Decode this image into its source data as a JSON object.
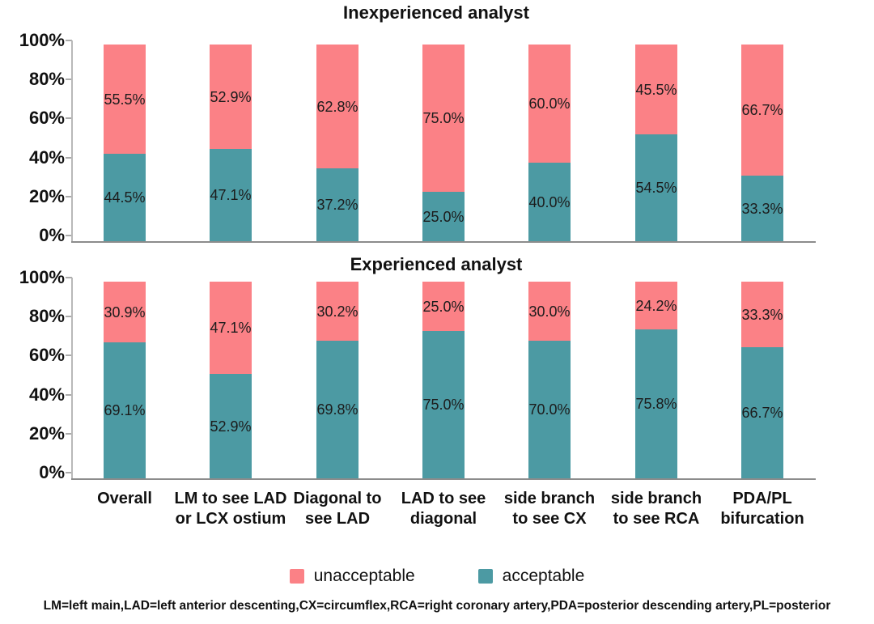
{
  "figure": {
    "legend": [
      {
        "label": "unacceptable",
        "color": "#FB8186"
      },
      {
        "label": "acceptable",
        "color": "#4C9AA3"
      }
    ],
    "footnote": "LM=left main,LAD=left anterior descenting,CX=circumflex,RCA=right coronary artery,PDA=posterior descending artery,PL=posterior"
  },
  "colors": {
    "unacceptable": "#FB8186",
    "acceptable": "#4C9AA3",
    "axis_line": "#b9b9b9",
    "baseline": "#8c8c8c",
    "tick_mark": "#ababab"
  },
  "chart_data": [
    {
      "type": "bar",
      "stacked": true,
      "title": "Inexperienced analyst",
      "categories": [
        [
          "Overall"
        ],
        [
          "LM to see LAD",
          "or LCX ostium"
        ],
        [
          "Diagonal to",
          "see LAD"
        ],
        [
          "LAD to see",
          "diagonal"
        ],
        [
          "side branch",
          "to see CX"
        ],
        [
          "side branch",
          "to see RCA"
        ],
        [
          "PDA/PL",
          "bifurcation"
        ]
      ],
      "yticks": [
        "0%",
        "20%",
        "40%",
        "60%",
        "80%",
        "100%"
      ],
      "ylim": [
        0,
        100
      ],
      "grid": false,
      "show_x_labels": false,
      "series": [
        {
          "name": "acceptable",
          "color": "#4C9AA3",
          "values": [
            44.5,
            47.1,
            37.2,
            25.0,
            40.0,
            54.5,
            33.3
          ],
          "labels": [
            "44.5%",
            "47.1%",
            "37.2%",
            "25.0%",
            "40.0%",
            "54.5%",
            "33.3%"
          ]
        },
        {
          "name": "unacceptable",
          "color": "#FB8186",
          "values": [
            55.5,
            52.9,
            62.8,
            75.0,
            60.0,
            45.5,
            66.7
          ],
          "labels": [
            "55.5%",
            "52.9%",
            "62.8%",
            "75.0%",
            "60.0%",
            "45.5%",
            "66.7%"
          ]
        }
      ]
    },
    {
      "type": "bar",
      "stacked": true,
      "title": "Experienced analyst",
      "categories": [
        [
          "Overall"
        ],
        [
          "LM to see LAD",
          "or LCX ostium"
        ],
        [
          "Diagonal to",
          "see LAD"
        ],
        [
          "LAD to see",
          "diagonal"
        ],
        [
          "side branch",
          "to see CX"
        ],
        [
          "side branch",
          "to see RCA"
        ],
        [
          "PDA/PL",
          "bifurcation"
        ]
      ],
      "yticks": [
        "0%",
        "20%",
        "40%",
        "60%",
        "80%",
        "100%"
      ],
      "ylim": [
        0,
        100
      ],
      "grid": false,
      "show_x_labels": true,
      "series": [
        {
          "name": "acceptable",
          "color": "#4C9AA3",
          "values": [
            69.1,
            52.9,
            69.8,
            75.0,
            70.0,
            75.8,
            66.7
          ],
          "labels": [
            "69.1%",
            "52.9%",
            "69.8%",
            "75.0%",
            "70.0%",
            "75.8%",
            "66.7%"
          ]
        },
        {
          "name": "unacceptable",
          "color": "#FB8186",
          "values": [
            30.9,
            47.1,
            30.2,
            25.0,
            30.0,
            24.2,
            33.3
          ],
          "labels": [
            "30.9%",
            "47.1%",
            "30.2%",
            "25.0%",
            "30.0%",
            "24.2%",
            "33.3%"
          ]
        }
      ]
    }
  ]
}
